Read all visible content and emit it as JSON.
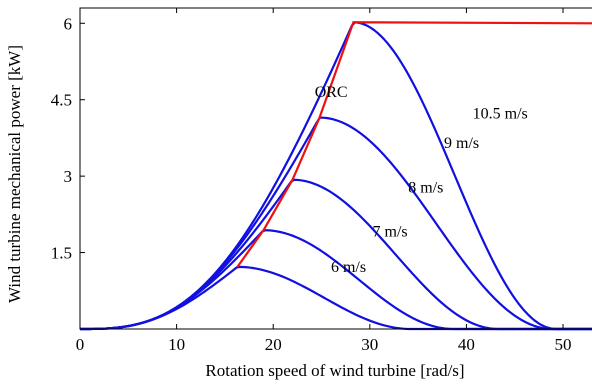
{
  "chart_data": {
    "type": "line",
    "title": "",
    "xlabel": "Rotation speed of wind turbine [rad/s]",
    "ylabel": "Wind turbine mechanical power [kW]",
    "xlim": [
      0,
      53
    ],
    "ylim": [
      0,
      6.3
    ],
    "xticks": [
      0,
      10,
      20,
      30,
      40,
      50
    ],
    "xtick_labels": [
      "0",
      "10",
      "20",
      "30",
      "40",
      "50"
    ],
    "yticks": [
      1.5,
      3,
      4.5,
      6
    ],
    "ytick_labels": [
      "1.5",
      "3",
      "4.5",
      "6"
    ],
    "grid": false,
    "legend": "none",
    "colors": {
      "curves": "#1010e0",
      "orc": "#ee1111",
      "axis": "#000000"
    },
    "series": [
      {
        "label": "6 m/s",
        "peak_speed": 16.3,
        "peak_power": 1.22,
        "cutoff_speed": 34.3,
        "label_at": [
          27.8,
          1.12
        ]
      },
      {
        "label": "7 m/s",
        "peak_speed": 19.0,
        "peak_power": 1.94,
        "cutoff_speed": 38.7,
        "label_at": [
          32.1,
          1.82
        ]
      },
      {
        "label": "8 m/s",
        "peak_speed": 22.0,
        "peak_power": 2.93,
        "cutoff_speed": 43.3,
        "label_at": [
          35.8,
          2.68
        ]
      },
      {
        "label": "9 m/s",
        "peak_speed": 24.8,
        "peak_power": 4.15,
        "cutoff_speed": 48.9,
        "label_at": [
          39.5,
          3.55
        ]
      },
      {
        "label": "10.5 m/s",
        "peak_speed": 28.3,
        "peak_power": 6.02,
        "cutoff_speed": 49.3,
        "label_at": [
          43.5,
          4.13
        ]
      }
    ],
    "orc": {
      "label": "ORC",
      "label_at": [
        26.0,
        4.55
      ],
      "x": [
        16.3,
        19.0,
        22.0,
        24.8,
        28.3,
        53.0
      ],
      "y": [
        1.22,
        1.94,
        2.93,
        4.15,
        6.02,
        6.0
      ]
    }
  }
}
